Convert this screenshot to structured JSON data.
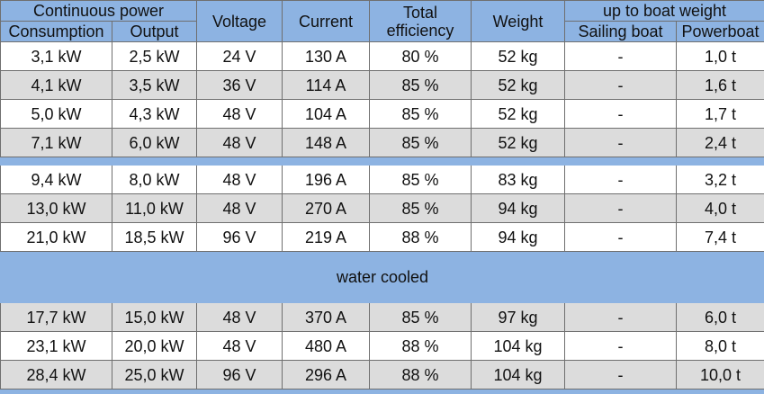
{
  "header": {
    "group_continuous": "Continuous power",
    "consumption": "Consumption",
    "output": "Output",
    "voltage": "Voltage",
    "current": "Current",
    "total_line1": "Total",
    "total_line2": "efficiency",
    "weight": "Weight",
    "group_boat": "up to boat weight",
    "sailing": "Sailing boat",
    "powerboat": "Powerboat"
  },
  "section_label": "water cooled",
  "rows_group1": [
    [
      "3,1 kW",
      "2,5 kW",
      "24 V",
      "130 A",
      "80 %",
      "52 kg",
      "-",
      "1,0 t"
    ],
    [
      "4,1 kW",
      "3,5 kW",
      "36 V",
      "114 A",
      "85 %",
      "52 kg",
      "-",
      "1,6 t"
    ],
    [
      "5,0 kW",
      "4,3 kW",
      "48 V",
      "104 A",
      "85 %",
      "52 kg",
      "-",
      "1,7 t"
    ],
    [
      "7,1 kW",
      "6,0 kW",
      "48 V",
      "148 A",
      "85 %",
      "52 kg",
      "-",
      "2,4 t"
    ]
  ],
  "rows_group2": [
    [
      "9,4 kW",
      "8,0 kW",
      "48 V",
      "196 A",
      "85 %",
      "83 kg",
      "-",
      "3,2 t"
    ],
    [
      "13,0 kW",
      "11,0 kW",
      "48 V",
      "270 A",
      "85 %",
      "94 kg",
      "-",
      "4,0 t"
    ],
    [
      "21,0 kW",
      "18,5 kW",
      "96 V",
      "219 A",
      "88 %",
      "94 kg",
      "-",
      "7,4 t"
    ]
  ],
  "rows_group3": [
    [
      "17,7 kW",
      "15,0 kW",
      "48 V",
      "370 A",
      "85 %",
      "97 kg",
      "-",
      "6,0 t"
    ],
    [
      "23,1 kW",
      "20,0 kW",
      "48 V",
      "480 A",
      "88 %",
      "104 kg",
      "-",
      "8,0 t"
    ],
    [
      "28,4 kW",
      "25,0 kW",
      "96 V",
      "296 A",
      "88 %",
      "104 kg",
      "-",
      "10,0 t"
    ]
  ],
  "colors": {
    "header_blue": "#8db3e2",
    "row_gray": "#dcdcdc"
  }
}
